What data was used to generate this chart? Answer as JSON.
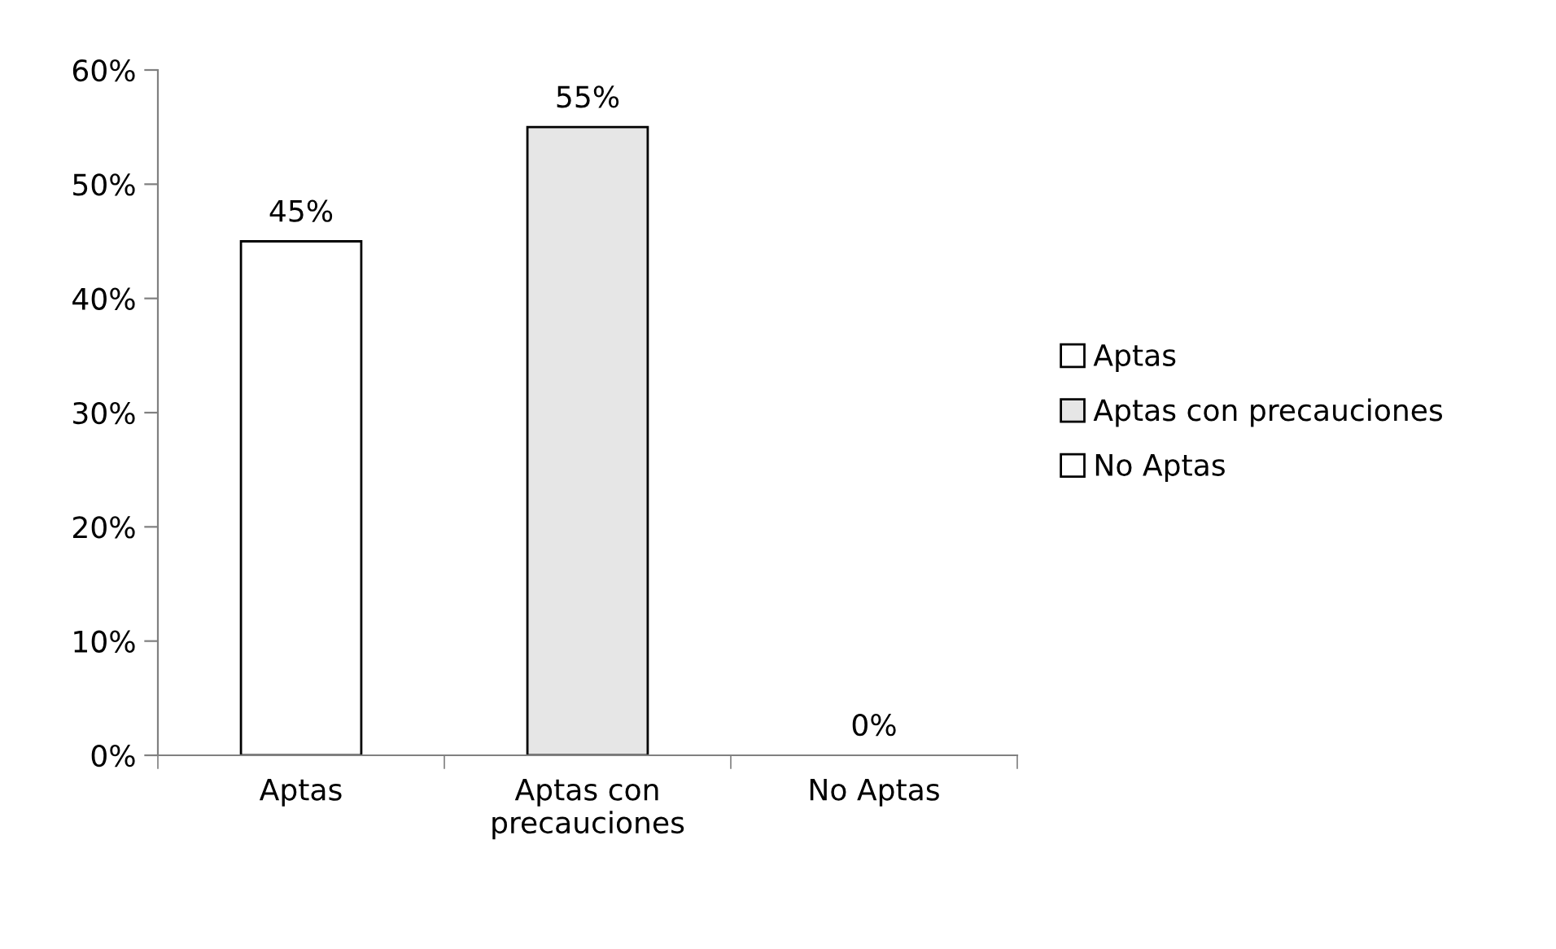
{
  "chart_data": {
    "type": "bar",
    "categories": [
      "Aptas",
      "Aptas con precauciones",
      "No Aptas"
    ],
    "series": [
      {
        "name": "Aptas",
        "color": "#ffffff",
        "values": [
          45,
          null,
          null
        ],
        "value_labels": [
          "45%",
          null,
          null
        ]
      },
      {
        "name": "Aptas con precauciones",
        "color": "#e6e6e6",
        "values": [
          null,
          55,
          null
        ],
        "value_labels": [
          null,
          "55%",
          null
        ]
      },
      {
        "name": "No Aptas",
        "color": "#ffffff",
        "values": [
          null,
          null,
          0
        ],
        "value_labels": [
          null,
          null,
          "0%"
        ]
      }
    ],
    "ylim": [
      0,
      60
    ],
    "yticks": [
      {
        "value": 0,
        "label": "0%"
      },
      {
        "value": 10,
        "label": "10%"
      },
      {
        "value": 20,
        "label": "20%"
      },
      {
        "value": 30,
        "label": "30%"
      },
      {
        "value": 40,
        "label": "40%"
      },
      {
        "value": 50,
        "label": "50%"
      },
      {
        "value": 60,
        "label": "60%"
      }
    ],
    "legend": "right"
  }
}
